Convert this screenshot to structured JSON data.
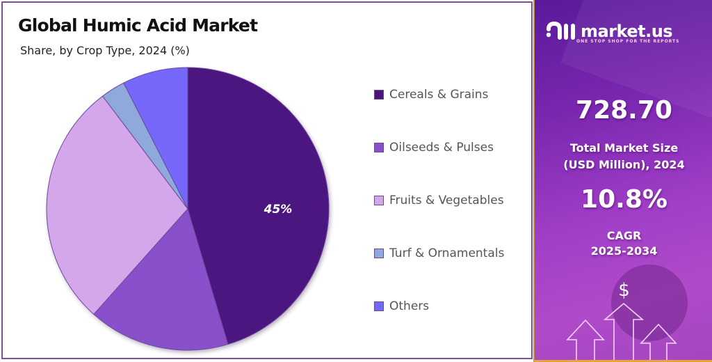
{
  "header": {
    "title": "Global Humic Acid Market",
    "subtitle": "Share, by Crop Type, 2024 (%)"
  },
  "legend": {
    "items": [
      {
        "label": "Cereals & Grains",
        "color": "#4b1580"
      },
      {
        "label": "Oilseeds & Pulses",
        "color": "#8a4fcb"
      },
      {
        "label": "Fruits & Vegetables",
        "color": "#d4a6ea"
      },
      {
        "label": "Turf & Ornamentals",
        "color": "#90a9dc"
      },
      {
        "label": "Others",
        "color": "#7468fb"
      }
    ]
  },
  "pie_label": "45%",
  "brand": {
    "name": "market.us",
    "tagline": "ONE STOP SHOP FOR THE REPORTS"
  },
  "stats": {
    "market_size_value": "728.70",
    "market_size_label_line1": "Total Market Size",
    "market_size_label_line2": "(USD Million), 2024",
    "cagr_value": "10.8%",
    "cagr_label_line1": "CAGR",
    "cagr_label_line2": "2025-2034"
  },
  "icons": {
    "dollar": "$"
  },
  "chart_data": {
    "type": "pie",
    "title": "Global Humic Acid Market",
    "subtitle": "Share, by Crop Type, 2024 (%)",
    "categories": [
      "Cereals & Grains",
      "Oilseeds & Pulses",
      "Fruits & Vegetables",
      "Turf & Ornamentals",
      "Others"
    ],
    "values": [
      45.4,
      16.2,
      28.1,
      2.8,
      7.5
    ],
    "colors": [
      "#4b1580",
      "#8a4fcb",
      "#d4a6ea",
      "#90a9dc",
      "#7468fb"
    ],
    "data_labels": [
      {
        "category": "Cereals & Grains",
        "text": "45%"
      }
    ],
    "start_angle": "12 o'clock, clockwise",
    "legend_position": "right"
  }
}
